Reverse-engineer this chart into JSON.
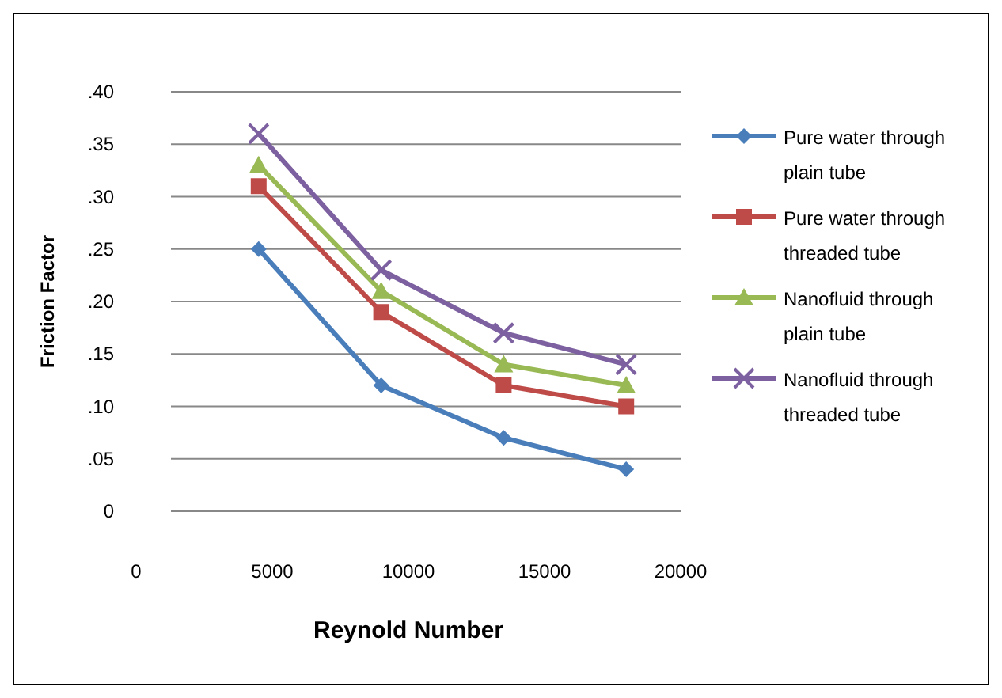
{
  "chart_data": {
    "type": "line",
    "xlabel": "Reynold Number",
    "ylabel": "Friction Factor",
    "x": [
      4500,
      9000,
      13500,
      18000
    ],
    "series": [
      {
        "name": "Pure water through plain tube",
        "color": "#4a7ebb",
        "marker": "diamond",
        "values": [
          0.25,
          0.12,
          0.07,
          0.04
        ]
      },
      {
        "name": "Pure water through threaded tube",
        "color": "#be4b48",
        "marker": "square",
        "values": [
          0.31,
          0.19,
          0.12,
          0.1
        ]
      },
      {
        "name": "Nanofluid through plain tube",
        "color": "#98b954",
        "marker": "triangle",
        "values": [
          0.33,
          0.21,
          0.14,
          0.12
        ]
      },
      {
        "name": "Nanofluid through threaded tube",
        "color": "#7d60a0",
        "marker": "cross",
        "values": [
          0.36,
          0.23,
          0.17,
          0.14
        ]
      }
    ],
    "xlim": [
      0,
      20000
    ],
    "xticks": [
      0,
      5000,
      10000,
      15000,
      20000
    ],
    "ylim": [
      0,
      0.4
    ],
    "yticks": [
      0,
      {
        "value": 0.05,
        "label": ".05"
      },
      {
        "value": 0.1,
        "label": ".10"
      },
      {
        "value": 0.15,
        "label": ".15"
      },
      {
        "value": 0.2,
        "label": ".20"
      },
      {
        "value": 0.25,
        "label": ".25"
      },
      {
        "value": 0.3,
        "label": ".30"
      },
      {
        "value": 0.35,
        "label": ".35"
      },
      {
        "value": 0.4,
        "label": ".40"
      }
    ],
    "grid": "y",
    "legend": "right",
    "line_style": "solid"
  }
}
